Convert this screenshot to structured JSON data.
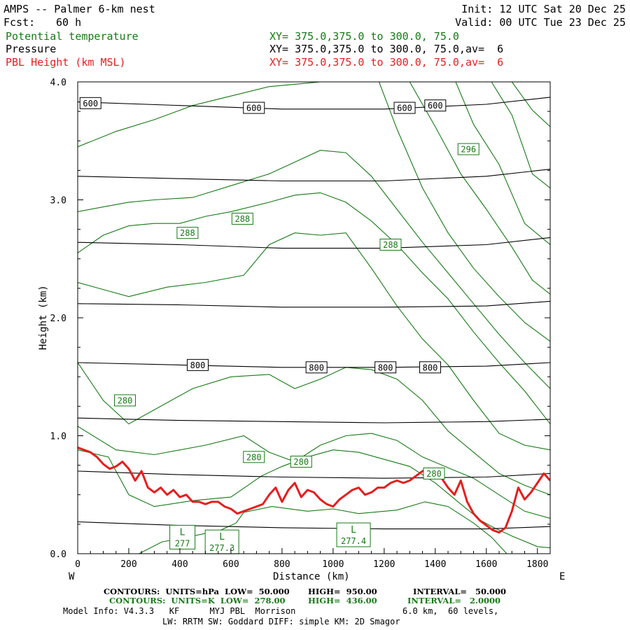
{
  "header": {
    "title": "AMPS -- Palmer 6-km nest",
    "fcst_label": "Fcst:",
    "fcst_value": "60 h",
    "init": "Init: 12 UTC Sat 20 Dec 25",
    "valid": "Valid: 00 UTC Tue 23 Dec 25",
    "field1_name": "Potential temperature",
    "field1_xy": "XY= 375.0,375.0 to 300.0, 75.0",
    "field2_name": "Pressure",
    "field2_xy": "XY= 375.0,375.0 to 300.0, 75.0,av=  6",
    "field3_name": "PBL Height (km MSL)",
    "field3_xy": "XY= 375.0,375.0 to 300.0, 75.0,av=  6"
  },
  "colors": {
    "theta": "#157a15",
    "pressure": "#000000",
    "pbl": "#e61e1e"
  },
  "chart_data": {
    "type": "line",
    "title": "AMPS -- Palmer 6-km nest",
    "xlabel": "Distance (km)",
    "ylabel": "Height (km)",
    "xlim": [
      0,
      1850
    ],
    "ylim": [
      0.0,
      4.0
    ],
    "x_ticks": [
      0,
      200,
      400,
      600,
      800,
      1000,
      1200,
      1400,
      1600,
      1800
    ],
    "y_ticks": [
      "0.0",
      "1.0",
      "2.0",
      "3.0",
      "4.0"
    ],
    "direction_left": "W",
    "direction_right": "E",
    "pressure_isobars": [
      {
        "level": 950,
        "points": [
          [
            0,
            0.27
          ],
          [
            400,
            0.24
          ],
          [
            800,
            0.22
          ],
          [
            1200,
            0.21
          ],
          [
            1600,
            0.21
          ],
          [
            1850,
            0.23
          ]
        ]
      },
      {
        "level": 900,
        "points": [
          [
            0,
            0.7
          ],
          [
            400,
            0.67
          ],
          [
            800,
            0.65
          ],
          [
            1200,
            0.64
          ],
          [
            1600,
            0.65
          ],
          [
            1850,
            0.68
          ]
        ]
      },
      {
        "level": 850,
        "points": [
          [
            0,
            1.15
          ],
          [
            400,
            1.13
          ],
          [
            800,
            1.12
          ],
          [
            1200,
            1.11
          ],
          [
            1600,
            1.12
          ],
          [
            1850,
            1.14
          ]
        ]
      },
      {
        "level": 800,
        "points": [
          [
            0,
            1.62
          ],
          [
            400,
            1.6
          ],
          [
            800,
            1.58
          ],
          [
            1200,
            1.58
          ],
          [
            1600,
            1.59
          ],
          [
            1850,
            1.62
          ]
        ]
      },
      {
        "level": 750,
        "points": [
          [
            0,
            2.12
          ],
          [
            400,
            2.11
          ],
          [
            800,
            2.09
          ],
          [
            1200,
            2.09
          ],
          [
            1600,
            2.1
          ],
          [
            1850,
            2.14
          ]
        ]
      },
      {
        "level": 700,
        "points": [
          [
            0,
            2.64
          ],
          [
            400,
            2.62
          ],
          [
            800,
            2.59
          ],
          [
            1200,
            2.59
          ],
          [
            1600,
            2.62
          ],
          [
            1850,
            2.68
          ]
        ]
      },
      {
        "level": 650,
        "points": [
          [
            0,
            3.2
          ],
          [
            400,
            3.18
          ],
          [
            800,
            3.16
          ],
          [
            1200,
            3.16
          ],
          [
            1600,
            3.2
          ],
          [
            1850,
            3.26
          ]
        ]
      },
      {
        "level": 600,
        "points": [
          [
            0,
            3.83
          ],
          [
            400,
            3.8
          ],
          [
            800,
            3.77
          ],
          [
            1200,
            3.77
          ],
          [
            1600,
            3.81
          ],
          [
            1850,
            3.87
          ]
        ]
      }
    ],
    "pressure_labels": [
      {
        "text": "600",
        "x": 50,
        "y": 3.82
      },
      {
        "text": "600",
        "x": 690,
        "y": 3.78
      },
      {
        "text": "600",
        "x": 1280,
        "y": 3.78
      },
      {
        "text": "600",
        "x": 1400,
        "y": 3.8
      },
      {
        "text": "800",
        "x": 470,
        "y": 1.6
      },
      {
        "text": "800",
        "x": 935,
        "y": 1.58
      },
      {
        "text": "800",
        "x": 1205,
        "y": 1.58
      },
      {
        "text": "800",
        "x": 1380,
        "y": 1.58
      }
    ],
    "theta_isentropes": [
      {
        "name": "theta-278",
        "points": [
          [
            240,
            0.0
          ],
          [
            330,
            0.1
          ],
          [
            430,
            0.14
          ],
          [
            560,
            0.2
          ],
          [
            620,
            0.26
          ],
          [
            650,
            0.35
          ],
          [
            760,
            0.4
          ],
          [
            900,
            0.36
          ],
          [
            1000,
            0.38
          ],
          [
            1100,
            0.34
          ],
          [
            1250,
            0.37
          ],
          [
            1360,
            0.44
          ],
          [
            1450,
            0.4
          ],
          [
            1550,
            0.26
          ],
          [
            1620,
            0.14
          ],
          [
            1680,
            0.0
          ]
        ]
      },
      {
        "name": "theta-280",
        "points": [
          [
            0,
            0.88
          ],
          [
            120,
            0.82
          ],
          [
            200,
            0.5
          ],
          [
            300,
            0.4
          ],
          [
            450,
            0.45
          ],
          [
            600,
            0.48
          ],
          [
            720,
            0.66
          ],
          [
            800,
            0.74
          ],
          [
            900,
            0.82
          ],
          [
            1000,
            0.88
          ],
          [
            1100,
            0.86
          ],
          [
            1200,
            0.8
          ],
          [
            1300,
            0.74
          ],
          [
            1400,
            0.6
          ],
          [
            1500,
            0.42
          ],
          [
            1580,
            0.28
          ],
          [
            1630,
            0.22
          ],
          [
            1700,
            0.15
          ],
          [
            1800,
            0.06
          ],
          [
            1850,
            0.05
          ]
        ]
      },
      {
        "name": "theta-282",
        "points": [
          [
            0,
            1.08
          ],
          [
            150,
            0.88
          ],
          [
            300,
            0.84
          ],
          [
            500,
            0.92
          ],
          [
            650,
            1.0
          ],
          [
            750,
            0.86
          ],
          [
            850,
            0.78
          ],
          [
            950,
            0.92
          ],
          [
            1050,
            1.0
          ],
          [
            1150,
            1.02
          ],
          [
            1250,
            0.96
          ],
          [
            1350,
            0.82
          ],
          [
            1460,
            0.72
          ],
          [
            1550,
            0.64
          ],
          [
            1650,
            0.5
          ],
          [
            1750,
            0.36
          ],
          [
            1850,
            0.3
          ]
        ]
      },
      {
        "name": "theta-284",
        "points": [
          [
            0,
            1.62
          ],
          [
            100,
            1.3
          ],
          [
            200,
            1.1
          ],
          [
            300,
            1.22
          ],
          [
            450,
            1.4
          ],
          [
            600,
            1.5
          ],
          [
            750,
            1.52
          ],
          [
            850,
            1.4
          ],
          [
            950,
            1.48
          ],
          [
            1050,
            1.58
          ],
          [
            1150,
            1.56
          ],
          [
            1250,
            1.48
          ],
          [
            1350,
            1.3
          ],
          [
            1450,
            1.04
          ],
          [
            1550,
            0.86
          ],
          [
            1650,
            0.68
          ],
          [
            1750,
            0.58
          ],
          [
            1850,
            0.5
          ]
        ]
      },
      {
        "name": "theta-286",
        "points": [
          [
            0,
            2.3
          ],
          [
            100,
            2.24
          ],
          [
            200,
            2.18
          ],
          [
            350,
            2.26
          ],
          [
            500,
            2.3
          ],
          [
            650,
            2.36
          ],
          [
            750,
            2.62
          ],
          [
            850,
            2.72
          ],
          [
            950,
            2.7
          ],
          [
            1050,
            2.72
          ],
          [
            1150,
            2.42
          ],
          [
            1250,
            2.1
          ],
          [
            1350,
            1.82
          ],
          [
            1450,
            1.6
          ],
          [
            1550,
            1.3
          ],
          [
            1650,
            1.02
          ],
          [
            1750,
            0.92
          ],
          [
            1850,
            0.88
          ]
        ]
      },
      {
        "name": "theta-288",
        "points": [
          [
            0,
            2.55
          ],
          [
            100,
            2.7
          ],
          [
            200,
            2.78
          ],
          [
            300,
            2.8
          ],
          [
            400,
            2.8
          ],
          [
            500,
            2.86
          ],
          [
            600,
            2.9
          ],
          [
            750,
            2.98
          ],
          [
            850,
            3.04
          ],
          [
            950,
            3.06
          ],
          [
            1050,
            2.98
          ],
          [
            1150,
            2.82
          ],
          [
            1250,
            2.62
          ],
          [
            1350,
            2.38
          ],
          [
            1450,
            2.16
          ],
          [
            1550,
            1.88
          ],
          [
            1650,
            1.62
          ],
          [
            1750,
            1.38
          ],
          [
            1850,
            1.1
          ]
        ]
      },
      {
        "name": "theta-290",
        "points": [
          [
            0,
            2.9
          ],
          [
            100,
            2.94
          ],
          [
            200,
            2.98
          ],
          [
            300,
            3.0
          ],
          [
            450,
            3.02
          ],
          [
            600,
            3.12
          ],
          [
            750,
            3.22
          ],
          [
            850,
            3.32
          ],
          [
            950,
            3.42
          ],
          [
            1050,
            3.4
          ],
          [
            1150,
            3.2
          ],
          [
            1250,
            2.92
          ],
          [
            1350,
            2.64
          ],
          [
            1450,
            2.38
          ],
          [
            1550,
            2.12
          ],
          [
            1650,
            1.86
          ],
          [
            1750,
            1.62
          ],
          [
            1850,
            1.4
          ]
        ]
      },
      {
        "name": "theta-292",
        "points": [
          [
            0,
            3.45
          ],
          [
            150,
            3.58
          ],
          [
            300,
            3.68
          ],
          [
            450,
            3.8
          ],
          [
            600,
            3.88
          ],
          [
            750,
            3.96
          ],
          [
            850,
            3.98
          ],
          [
            950,
            4.0
          ]
        ]
      },
      {
        "name": "theta-294",
        "points": [
          [
            1180,
            4.0
          ],
          [
            1250,
            3.6
          ],
          [
            1350,
            3.1
          ],
          [
            1450,
            2.72
          ],
          [
            1550,
            2.42
          ],
          [
            1650,
            2.18
          ],
          [
            1750,
            1.96
          ],
          [
            1850,
            1.8
          ]
        ]
      },
      {
        "name": "theta-296",
        "points": [
          [
            1300,
            4.0
          ],
          [
            1400,
            3.62
          ],
          [
            1500,
            3.22
          ],
          [
            1600,
            2.92
          ],
          [
            1700,
            2.6
          ],
          [
            1780,
            2.32
          ],
          [
            1850,
            2.2
          ]
        ]
      },
      {
        "name": "theta-298",
        "points": [
          [
            1480,
            4.0
          ],
          [
            1550,
            3.64
          ],
          [
            1650,
            3.3
          ],
          [
            1750,
            2.8
          ],
          [
            1850,
            2.62
          ]
        ]
      },
      {
        "name": "theta-300",
        "points": [
          [
            1620,
            4.0
          ],
          [
            1700,
            3.72
          ],
          [
            1780,
            3.22
          ],
          [
            1850,
            3.1
          ]
        ]
      },
      {
        "name": "theta-302",
        "points": [
          [
            1700,
            4.0
          ],
          [
            1780,
            3.76
          ],
          [
            1850,
            3.62
          ]
        ]
      }
    ],
    "theta_labels": [
      {
        "text": "288",
        "x": 430,
        "y": 2.72
      },
      {
        "text": "288",
        "x": 645,
        "y": 2.84
      },
      {
        "text": "288",
        "x": 1225,
        "y": 2.62
      },
      {
        "text": "296",
        "x": 1530,
        "y": 3.43
      },
      {
        "text": "280",
        "x": 185,
        "y": 1.3
      },
      {
        "text": "280",
        "x": 690,
        "y": 0.82
      },
      {
        "text": "280",
        "x": 875,
        "y": 0.78
      },
      {
        "text": "280",
        "x": 1395,
        "y": 0.68
      }
    ],
    "theta_lows": [
      {
        "label": "L",
        "value": "277",
        "x": 410,
        "y": 0.14
      },
      {
        "label": "L",
        "value": "277.3",
        "x": 565,
        "y": 0.1
      },
      {
        "label": "L",
        "value": "277.4",
        "x": 1080,
        "y": 0.16
      }
    ],
    "pbl_height": {
      "name": "PBL Height (km MSL)",
      "x": [
        0,
        25,
        50,
        75,
        100,
        125,
        150,
        175,
        200,
        225,
        250,
        275,
        300,
        325,
        350,
        375,
        400,
        425,
        450,
        475,
        500,
        525,
        550,
        575,
        600,
        625,
        650,
        675,
        700,
        725,
        750,
        775,
        800,
        825,
        850,
        875,
        900,
        925,
        950,
        975,
        1000,
        1025,
        1050,
        1075,
        1100,
        1125,
        1150,
        1175,
        1200,
        1225,
        1250,
        1275,
        1300,
        1325,
        1350,
        1375,
        1400,
        1425,
        1450,
        1475,
        1500,
        1525,
        1550,
        1575,
        1600,
        1625,
        1650,
        1675,
        1700,
        1725,
        1750,
        1775,
        1800,
        1825,
        1850
      ],
      "y": [
        0.9,
        0.88,
        0.86,
        0.82,
        0.76,
        0.72,
        0.74,
        0.78,
        0.72,
        0.62,
        0.7,
        0.56,
        0.52,
        0.56,
        0.5,
        0.54,
        0.48,
        0.5,
        0.44,
        0.44,
        0.42,
        0.44,
        0.44,
        0.4,
        0.38,
        0.34,
        0.36,
        0.38,
        0.4,
        0.42,
        0.5,
        0.56,
        0.44,
        0.54,
        0.6,
        0.48,
        0.54,
        0.52,
        0.46,
        0.42,
        0.4,
        0.46,
        0.5,
        0.54,
        0.56,
        0.5,
        0.52,
        0.56,
        0.56,
        0.6,
        0.62,
        0.6,
        0.62,
        0.66,
        0.7,
        0.72,
        0.68,
        0.64,
        0.56,
        0.5,
        0.62,
        0.44,
        0.34,
        0.28,
        0.24,
        0.2,
        0.18,
        0.22,
        0.36,
        0.56,
        0.46,
        0.52,
        0.6,
        0.68,
        0.62
      ]
    }
  },
  "footer": {
    "line1_a": "CONTOURS:  UNITS=hPa  LOW=  50.000",
    "line1_b": "HIGH=  950.00",
    "line1_c": "INTERVAL=   50.000",
    "line2_a": "CONTOURS:  UNITS=K  LOW=  278.00",
    "line2_b": "HIGH=  436.00",
    "line2_c": "INTERVAL=   2.0000",
    "line3_a": "Model Info: V4.3.3   KF      MYJ PBL  Morrison",
    "line3_b": "6.0 km,  60 levels,",
    "line4": "LW: RRTM SW: Goddard DIFF: simple KM: 2D Smagor"
  }
}
